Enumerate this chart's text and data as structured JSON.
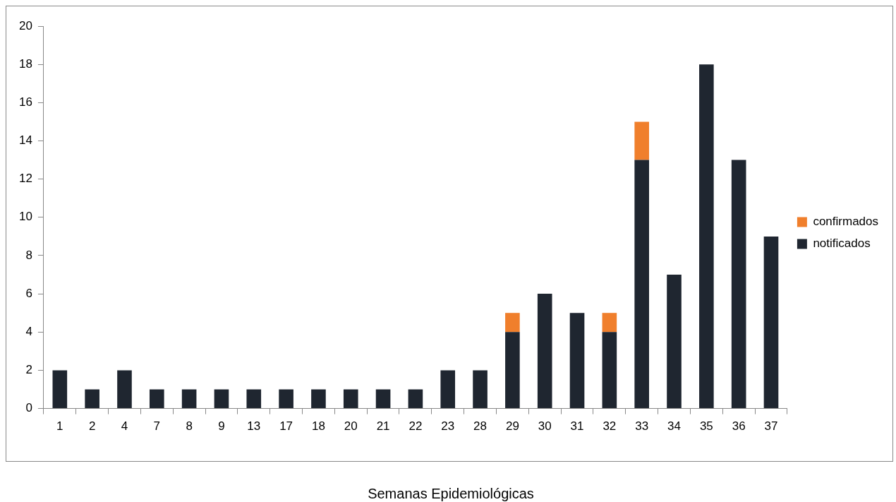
{
  "chart_data": {
    "type": "bar",
    "xlabel": "Semanas Epidemiológicas",
    "categories": [
      "1",
      "2",
      "4",
      "7",
      "8",
      "9",
      "13",
      "17",
      "18",
      "20",
      "21",
      "22",
      "23",
      "28",
      "29",
      "30",
      "31",
      "32",
      "33",
      "34",
      "35",
      "36",
      "37"
    ],
    "series": [
      {
        "name": "notificados",
        "color": "#1f2630",
        "values": [
          2,
          1,
          2,
          1,
          1,
          1,
          1,
          1,
          1,
          1,
          1,
          1,
          2,
          2,
          4,
          6,
          5,
          4,
          13,
          7,
          18,
          13,
          9
        ]
      },
      {
        "name": "confirmados",
        "color": "#f07f2c",
        "values": [
          0,
          0,
          0,
          0,
          0,
          0,
          0,
          0,
          0,
          0,
          0,
          0,
          0,
          0,
          1,
          0,
          0,
          1,
          2,
          0,
          0,
          0,
          0
        ]
      }
    ],
    "stacked": true,
    "ylim": [
      0,
      20
    ],
    "yticks": [
      0,
      2,
      4,
      6,
      8,
      10,
      12,
      14,
      16,
      18,
      20
    ],
    "grid": false,
    "legend": "right"
  }
}
